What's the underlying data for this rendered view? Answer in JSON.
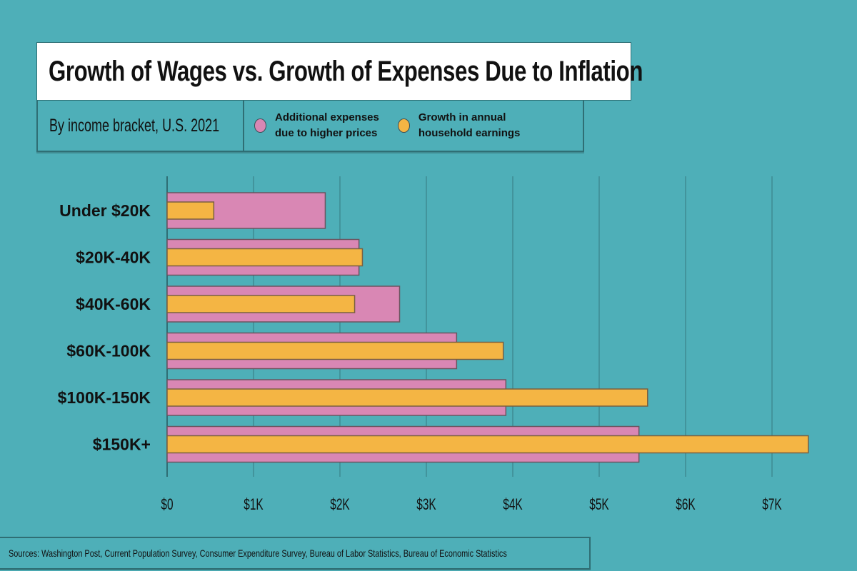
{
  "header": {
    "title": "Growth of Wages vs. Growth of Expenses Due to Inflation",
    "subtitle": "By income bracket, U.S. 2021"
  },
  "legend": [
    {
      "label": "Additional expenses\ndue to higher prices",
      "color": "#d987b4",
      "icon": "pink-circle-icon"
    },
    {
      "label": "Growth in annual\nhousehold earnings",
      "color": "#f4b544",
      "icon": "orange-circle-icon"
    }
  ],
  "footer": {
    "sources": "Sources: Washington Post, Current Population Survey, Consumer Expenditure Survey, Bureau of Labor Statistics, Bureau of Economic Statistics"
  },
  "colors": {
    "background": "#4eafb8",
    "expenses": "#d987b4",
    "earnings": "#f4b544",
    "gridline": "#3e8c93",
    "bar_outline": "#6a5560"
  },
  "chart_data": {
    "type": "bar",
    "orientation": "horizontal",
    "title": "Growth of Wages vs. Growth of Expenses Due to Inflation",
    "subtitle": "By income bracket, U.S. 2021",
    "xlabel": "",
    "ylabel": "",
    "categories": [
      "Under $20K",
      "$20K-40K",
      "$40K-60K",
      "$60K-100K",
      "$100K-150K",
      "$150K+"
    ],
    "series": [
      {
        "name": "Additional expenses due to higher prices",
        "color": "#d987b4",
        "values": [
          1830,
          2220,
          2690,
          3350,
          3920,
          5460
        ]
      },
      {
        "name": "Growth in annual household earnings",
        "color": "#f4b544",
        "values": [
          540,
          2260,
          2170,
          3890,
          5560,
          7420
        ]
      }
    ],
    "xlim": [
      0,
      7500
    ],
    "xticks": [
      0,
      1000,
      2000,
      3000,
      4000,
      5000,
      6000,
      7000
    ],
    "xtick_labels": [
      "$0",
      "$1K",
      "$2K",
      "$3K",
      "$4K",
      "$5K",
      "$6K",
      "$7K"
    ],
    "grid": true,
    "legend_position": "top"
  }
}
